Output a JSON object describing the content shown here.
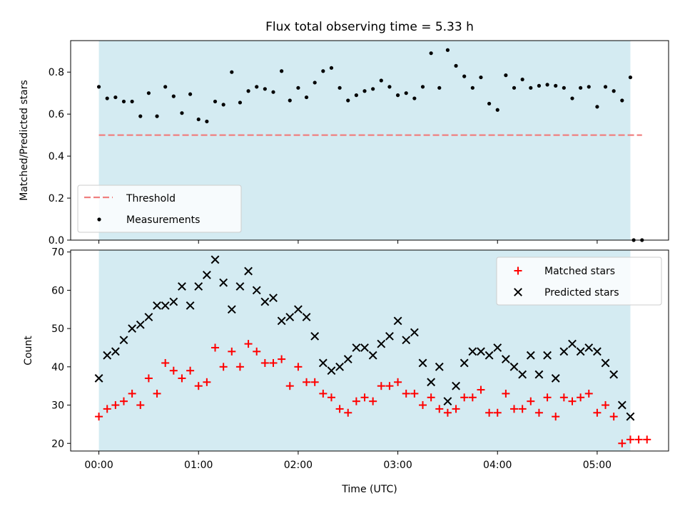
{
  "chart_data": [
    {
      "type": "scatter",
      "title": "Flux total observing time = 5.33 h",
      "xlabel": "",
      "ylabel": "Matched/Predicted stars",
      "xlim": [
        "23:43",
        "05:43"
      ],
      "ylim": [
        0,
        0.95
      ],
      "yticks": [
        "0.0",
        "0.2",
        "0.4",
        "0.6",
        "0.8"
      ],
      "shaded_interval": [
        "00:00",
        "05:20"
      ],
      "shade_color": "#d4ebf2",
      "threshold": {
        "name": "Threshold",
        "value": 0.5,
        "x_range": [
          "00:00",
          "05:27"
        ],
        "color": "#f08080"
      },
      "legend": {
        "placement": "lower-left",
        "items": [
          "Threshold",
          "Measurements"
        ]
      },
      "series": [
        {
          "name": "Measurements",
          "marker": "dot",
          "color": "#000000",
          "points": [
            [
              "00:00",
              0.73
            ],
            [
              "00:05",
              0.675
            ],
            [
              "00:10",
              0.68
            ],
            [
              "00:15",
              0.66
            ],
            [
              "00:20",
              0.66
            ],
            [
              "00:25",
              0.59
            ],
            [
              "00:30",
              0.7
            ],
            [
              "00:35",
              0.59
            ],
            [
              "00:40",
              0.73
            ],
            [
              "00:45",
              0.685
            ],
            [
              "00:50",
              0.605
            ],
            [
              "00:55",
              0.695
            ],
            [
              "01:00",
              0.575
            ],
            [
              "01:05",
              0.565
            ],
            [
              "01:10",
              0.66
            ],
            [
              "01:15",
              0.645
            ],
            [
              "01:20",
              0.8
            ],
            [
              "01:25",
              0.655
            ],
            [
              "01:30",
              0.71
            ],
            [
              "01:35",
              0.73
            ],
            [
              "01:40",
              0.72
            ],
            [
              "01:45",
              0.705
            ],
            [
              "01:50",
              0.805
            ],
            [
              "01:55",
              0.665
            ],
            [
              "02:00",
              0.725
            ],
            [
              "02:05",
              0.68
            ],
            [
              "02:10",
              0.75
            ],
            [
              "02:15",
              0.805
            ],
            [
              "02:20",
              0.82
            ],
            [
              "02:25",
              0.725
            ],
            [
              "02:30",
              0.665
            ],
            [
              "02:35",
              0.69
            ],
            [
              "02:40",
              0.71
            ],
            [
              "02:45",
              0.72
            ],
            [
              "02:50",
              0.76
            ],
            [
              "02:55",
              0.73
            ],
            [
              "03:00",
              0.69
            ],
            [
              "03:05",
              0.7
            ],
            [
              "03:10",
              0.675
            ],
            [
              "03:15",
              0.73
            ],
            [
              "03:20",
              0.89
            ],
            [
              "03:25",
              0.725
            ],
            [
              "03:30",
              0.905
            ],
            [
              "03:35",
              0.83
            ],
            [
              "03:40",
              0.78
            ],
            [
              "03:45",
              0.725
            ],
            [
              "03:50",
              0.775
            ],
            [
              "03:55",
              0.65
            ],
            [
              "04:00",
              0.62
            ],
            [
              "04:05",
              0.785
            ],
            [
              "04:10",
              0.725
            ],
            [
              "04:15",
              0.765
            ],
            [
              "04:20",
              0.725
            ],
            [
              "04:25",
              0.735
            ],
            [
              "04:30",
              0.74
            ],
            [
              "04:35",
              0.735
            ],
            [
              "04:40",
              0.725
            ],
            [
              "04:45",
              0.675
            ],
            [
              "04:50",
              0.725
            ],
            [
              "04:55",
              0.73
            ],
            [
              "05:00",
              0.635
            ],
            [
              "05:05",
              0.73
            ],
            [
              "05:10",
              0.71
            ],
            [
              "05:15",
              0.665
            ],
            [
              "05:20",
              0.775
            ],
            [
              "05:22",
              0.0
            ],
            [
              "05:27",
              0.0
            ]
          ]
        }
      ]
    },
    {
      "type": "scatter",
      "title": "",
      "xlabel": "Time (UTC)",
      "ylabel": "Count",
      "xlim": [
        "23:43",
        "05:43"
      ],
      "ylim": [
        18,
        70.5
      ],
      "yticks": [
        "20",
        "30",
        "40",
        "50",
        "60",
        "70"
      ],
      "xticks": [
        "00:00",
        "01:00",
        "02:00",
        "03:00",
        "04:00",
        "05:00"
      ],
      "shaded_interval": [
        "00:00",
        "05:20"
      ],
      "shade_color": "#d4ebf2",
      "legend": {
        "placement": "upper-right",
        "items": [
          "Matched stars",
          "Predicted stars"
        ]
      },
      "series": [
        {
          "name": "Matched stars",
          "marker": "plus",
          "color": "#ff0000",
          "points": [
            [
              "00:00",
              27
            ],
            [
              "00:05",
              29
            ],
            [
              "00:10",
              30
            ],
            [
              "00:15",
              31
            ],
            [
              "00:20",
              33
            ],
            [
              "00:25",
              30
            ],
            [
              "00:30",
              37
            ],
            [
              "00:35",
              33
            ],
            [
              "00:40",
              41
            ],
            [
              "00:45",
              39
            ],
            [
              "00:50",
              37
            ],
            [
              "00:55",
              39
            ],
            [
              "01:00",
              35
            ],
            [
              "01:05",
              36
            ],
            [
              "01:10",
              45
            ],
            [
              "01:15",
              40
            ],
            [
              "01:20",
              44
            ],
            [
              "01:25",
              40
            ],
            [
              "01:30",
              46
            ],
            [
              "01:35",
              44
            ],
            [
              "01:40",
              41
            ],
            [
              "01:45",
              41
            ],
            [
              "01:50",
              42
            ],
            [
              "01:55",
              35
            ],
            [
              "02:00",
              40
            ],
            [
              "02:05",
              36
            ],
            [
              "02:10",
              36
            ],
            [
              "02:15",
              33
            ],
            [
              "02:20",
              32
            ],
            [
              "02:25",
              29
            ],
            [
              "02:30",
              28
            ],
            [
              "02:35",
              31
            ],
            [
              "02:40",
              32
            ],
            [
              "02:45",
              31
            ],
            [
              "02:50",
              35
            ],
            [
              "02:55",
              35
            ],
            [
              "03:00",
              36
            ],
            [
              "03:05",
              33
            ],
            [
              "03:10",
              33
            ],
            [
              "03:15",
              30
            ],
            [
              "03:20",
              32
            ],
            [
              "03:25",
              29
            ],
            [
              "03:30",
              28
            ],
            [
              "03:35",
              29
            ],
            [
              "03:40",
              32
            ],
            [
              "03:45",
              32
            ],
            [
              "03:50",
              34
            ],
            [
              "03:55",
              28
            ],
            [
              "04:00",
              28
            ],
            [
              "04:05",
              33
            ],
            [
              "04:10",
              29
            ],
            [
              "04:15",
              29
            ],
            [
              "04:20",
              31
            ],
            [
              "04:25",
              28
            ],
            [
              "04:30",
              32
            ],
            [
              "04:35",
              27
            ],
            [
              "04:40",
              32
            ],
            [
              "04:45",
              31
            ],
            [
              "04:50",
              32
            ],
            [
              "04:55",
              33
            ],
            [
              "05:00",
              28
            ],
            [
              "05:05",
              30
            ],
            [
              "05:10",
              27
            ],
            [
              "05:15",
              20
            ],
            [
              "05:20",
              21
            ],
            [
              "05:25",
              21
            ],
            [
              "05:30",
              21
            ]
          ]
        },
        {
          "name": "Predicted stars",
          "marker": "x",
          "color": "#000000",
          "points": [
            [
              "00:00",
              37
            ],
            [
              "00:05",
              43
            ],
            [
              "00:10",
              44
            ],
            [
              "00:15",
              47
            ],
            [
              "00:20",
              50
            ],
            [
              "00:25",
              51
            ],
            [
              "00:30",
              53
            ],
            [
              "00:35",
              56
            ],
            [
              "00:40",
              56
            ],
            [
              "00:45",
              57
            ],
            [
              "00:50",
              61
            ],
            [
              "00:55",
              56
            ],
            [
              "01:00",
              61
            ],
            [
              "01:05",
              64
            ],
            [
              "01:10",
              68
            ],
            [
              "01:15",
              62
            ],
            [
              "01:20",
              55
            ],
            [
              "01:25",
              61
            ],
            [
              "01:30",
              65
            ],
            [
              "01:35",
              60
            ],
            [
              "01:40",
              57
            ],
            [
              "01:45",
              58
            ],
            [
              "01:50",
              52
            ],
            [
              "01:55",
              53
            ],
            [
              "02:00",
              55
            ],
            [
              "02:05",
              53
            ],
            [
              "02:10",
              48
            ],
            [
              "02:15",
              41
            ],
            [
              "02:20",
              39
            ],
            [
              "02:25",
              40
            ],
            [
              "02:30",
              42
            ],
            [
              "02:35",
              45
            ],
            [
              "02:40",
              45
            ],
            [
              "02:45",
              43
            ],
            [
              "02:50",
              46
            ],
            [
              "02:55",
              48
            ],
            [
              "03:00",
              52
            ],
            [
              "03:05",
              47
            ],
            [
              "03:10",
              49
            ],
            [
              "03:15",
              41
            ],
            [
              "03:20",
              36
            ],
            [
              "03:25",
              40
            ],
            [
              "03:30",
              31
            ],
            [
              "03:35",
              35
            ],
            [
              "03:40",
              41
            ],
            [
              "03:45",
              44
            ],
            [
              "03:50",
              44
            ],
            [
              "03:55",
              43
            ],
            [
              "04:00",
              45
            ],
            [
              "04:05",
              42
            ],
            [
              "04:10",
              40
            ],
            [
              "04:15",
              38
            ],
            [
              "04:20",
              43
            ],
            [
              "04:25",
              38
            ],
            [
              "04:30",
              43
            ],
            [
              "04:35",
              37
            ],
            [
              "04:40",
              44
            ],
            [
              "04:45",
              46
            ],
            [
              "04:50",
              44
            ],
            [
              "04:55",
              45
            ],
            [
              "05:00",
              44
            ],
            [
              "05:05",
              41
            ],
            [
              "05:10",
              38
            ],
            [
              "05:15",
              30
            ],
            [
              "05:20",
              27
            ]
          ]
        }
      ]
    }
  ]
}
